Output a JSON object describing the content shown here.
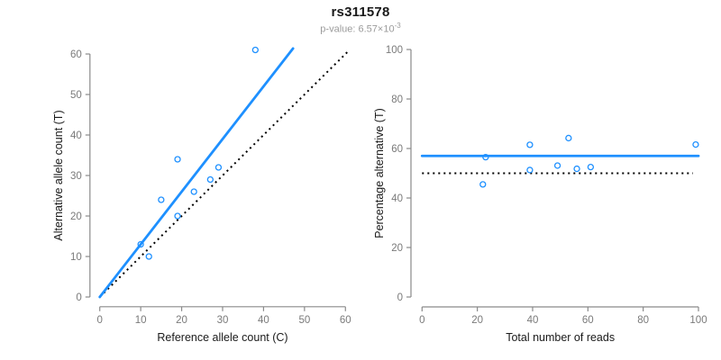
{
  "title": "rs311578",
  "subtitle": {
    "prefix": "p-value: 6.57×10",
    "exponent": "-3"
  },
  "colors": {
    "accent": "#1E90FF",
    "axis_line": "#8a8a8a",
    "tick_label": "#7a7a7a",
    "axis_title": "#1a1a1a",
    "null_line": "#000000",
    "background": "#ffffff"
  },
  "chart_data": [
    {
      "type": "scatter",
      "name": "allele-count-scatter",
      "xlabel": "Reference allele count (C)",
      "ylabel": "Alternative allele count (T)",
      "xlim": [
        0,
        60
      ],
      "ylim": [
        0,
        60
      ],
      "xticks": [
        0,
        10,
        20,
        30,
        40,
        50,
        60
      ],
      "yticks": [
        0,
        10,
        20,
        30,
        40,
        50,
        60
      ],
      "grid": false,
      "legend": "none",
      "points": [
        [
          10,
          13
        ],
        [
          12,
          10
        ],
        [
          15,
          24
        ],
        [
          19,
          20
        ],
        [
          19,
          34
        ],
        [
          23,
          26
        ],
        [
          27,
          29
        ],
        [
          29,
          32
        ],
        [
          38,
          61
        ]
      ],
      "fit_line": {
        "kind": "slope",
        "slope": 1.3,
        "intercept": 0,
        "x_range": [
          0,
          47.2
        ],
        "style": "solid"
      },
      "ref_line": {
        "kind": "identity",
        "x_range": [
          1,
          61
        ],
        "style": "dotted"
      }
    },
    {
      "type": "scatter",
      "name": "percentage-vs-reads-scatter",
      "xlabel": "Total number of reads",
      "ylabel": "Percentage alternative (T)",
      "xlim": [
        0,
        100
      ],
      "ylim": [
        0,
        100
      ],
      "xticks": [
        0,
        20,
        40,
        60,
        80,
        100
      ],
      "yticks": [
        0,
        20,
        40,
        60,
        80,
        100
      ],
      "grid": false,
      "legend": "none",
      "points": [
        [
          23,
          56.5
        ],
        [
          22,
          45.5
        ],
        [
          39,
          61.5
        ],
        [
          39,
          51.3
        ],
        [
          49,
          53.1
        ],
        [
          53,
          64.2
        ],
        [
          56,
          51.8
        ],
        [
          61,
          52.5
        ],
        [
          99,
          61.6
        ]
      ],
      "fit_line": {
        "kind": "horizontal",
        "y": 57,
        "x_range": [
          0,
          100
        ],
        "style": "solid"
      },
      "ref_line": {
        "kind": "horizontal",
        "y": 50,
        "x_range": [
          0,
          98
        ],
        "style": "dotted"
      }
    }
  ]
}
